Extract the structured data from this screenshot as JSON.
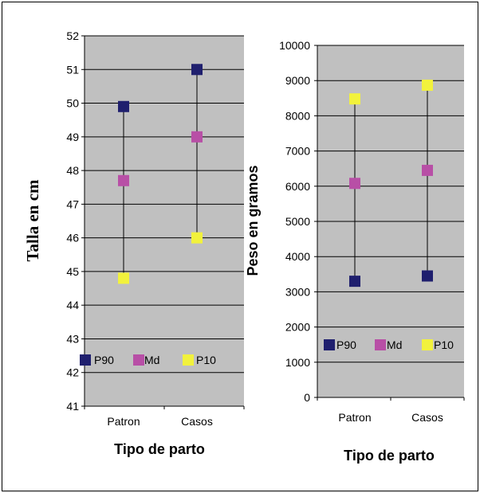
{
  "chart_data": [
    {
      "type": "scatter",
      "title": "",
      "xlabel": "Tipo de parto",
      "ylabel": "Talla en cm",
      "categories": [
        "Patron",
        "Casos"
      ],
      "ylim": [
        41,
        52
      ],
      "yticks": [
        41,
        42,
        43,
        44,
        45,
        46,
        47,
        48,
        49,
        50,
        51,
        52
      ],
      "grid": true,
      "legend_placement": "bottom-inside",
      "series": [
        {
          "name": "P90",
          "color": "#1f1f6e",
          "values": [
            49.9,
            51.0
          ]
        },
        {
          "name": "Md",
          "color": "#b84fa6",
          "values": [
            47.7,
            49.0
          ]
        },
        {
          "name": "P10",
          "color": "#f2f23c",
          "values": [
            44.8,
            46.0
          ]
        }
      ]
    },
    {
      "type": "scatter",
      "title": "",
      "xlabel": "Tipo de parto",
      "ylabel": "Peso en gramos",
      "categories": [
        "Patron",
        "Casos"
      ],
      "ylim": [
        0,
        10000
      ],
      "yticks": [
        0,
        1000,
        2000,
        3000,
        4000,
        5000,
        6000,
        7000,
        8000,
        9000,
        10000
      ],
      "grid": true,
      "legend_placement": "bottom-inside",
      "series": [
        {
          "name": "P90",
          "color": "#1f1f6e",
          "values": [
            3300,
            3450
          ]
        },
        {
          "name": "Md",
          "color": "#b84fa6",
          "values": [
            6080,
            6450
          ]
        },
        {
          "name": "P10",
          "color": "#f2f23c",
          "values": [
            8480,
            8870
          ]
        }
      ]
    }
  ],
  "plot_bg": "#c0c0c0",
  "grid_color": "#000000"
}
